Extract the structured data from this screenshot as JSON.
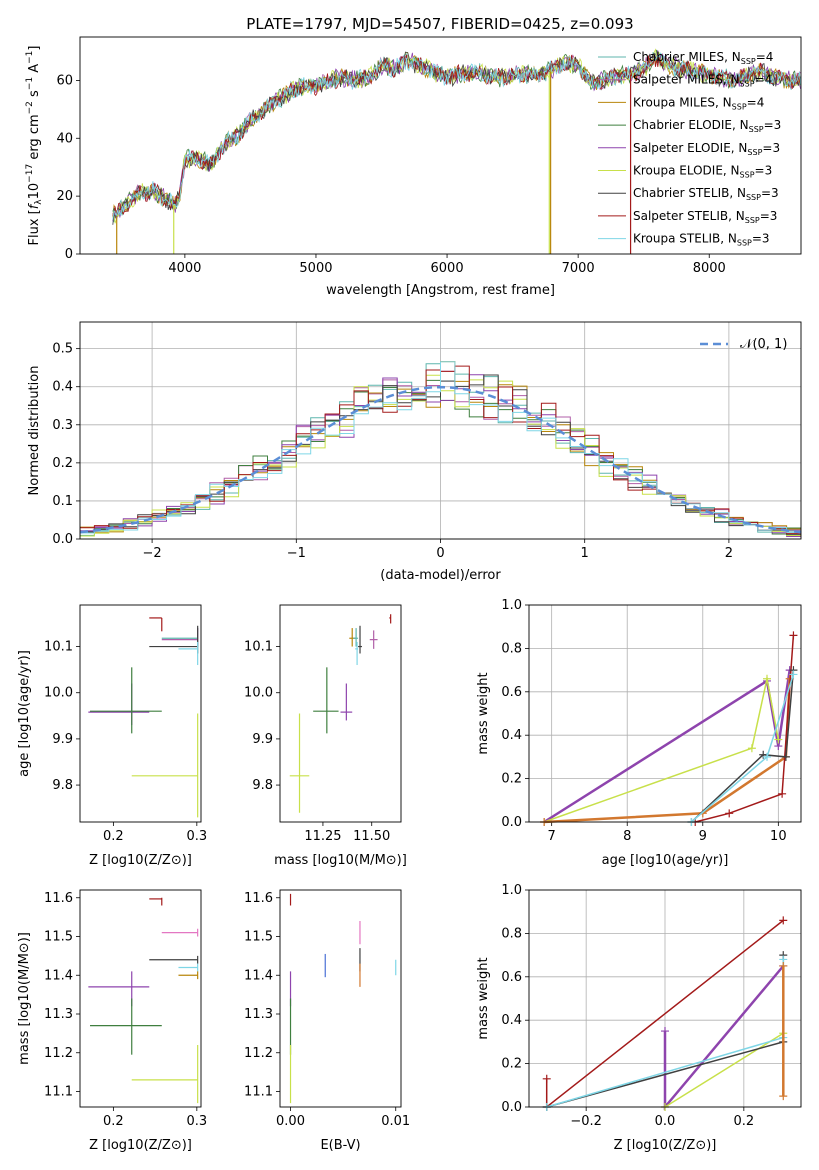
{
  "title": "PLATE=1797, MJD=54507, FIBERID=0425, z=0.093",
  "colors": {
    "axis": "#000000",
    "grid": "#b0b0b0",
    "normal_curve": "#5b8ed6",
    "spectra": [
      "#5fb6ad",
      "#b05fa8",
      "#b8860b",
      "#3f7f3f",
      "#8e44ad",
      "#c8e04a",
      "#404040",
      "#a31a1a",
      "#7fd6e6"
    ],
    "extra_orange": "#d2782f",
    "extra_pink": "#e377c2",
    "extra_blue": "#4a6fd6"
  },
  "legend_series": [
    {
      "main": "Chabrier MILES, N",
      "sub": "SSP",
      "suffix": "=4"
    },
    {
      "main": "Salpeter MILES, N",
      "sub": "SSP",
      "suffix": "=4"
    },
    {
      "main": "Kroupa MILES, N",
      "sub": "SSP",
      "suffix": "=4"
    },
    {
      "main": "Chabrier ELODIE, N",
      "sub": "SSP",
      "suffix": "=3"
    },
    {
      "main": "Salpeter ELODIE, N",
      "sub": "SSP",
      "suffix": "=3"
    },
    {
      "main": "Kroupa ELODIE, N",
      "sub": "SSP",
      "suffix": "=3"
    },
    {
      "main": "Chabrier STELIB, N",
      "sub": "SSP",
      "suffix": "=3"
    },
    {
      "main": "Salpeter STELIB, N",
      "sub": "SSP",
      "suffix": "=3"
    },
    {
      "main": "Kroupa STELIB, N",
      "sub": "SSP",
      "suffix": "=3"
    }
  ],
  "chart_data": [
    {
      "id": "spectrum",
      "type": "line",
      "xlabel": "wavelength [Angstrom, rest frame]",
      "ylabel": "Flux [f_λ10^-17 erg cm^-2 s^-1 A^-1]",
      "xlim": [
        3200,
        8700
      ],
      "ylim": [
        0,
        75
      ],
      "xticks": [
        4000,
        5000,
        6000,
        7000,
        8000
      ],
      "yticks": [
        0,
        20,
        40,
        60
      ],
      "grid": false,
      "legend": "top-right",
      "continuum": [
        [
          3450,
          13
        ],
        [
          3550,
          17
        ],
        [
          3650,
          21
        ],
        [
          3750,
          22
        ],
        [
          3850,
          19
        ],
        [
          3920,
          17
        ],
        [
          3960,
          20
        ],
        [
          4000,
          33
        ],
        [
          4100,
          33
        ],
        [
          4200,
          31
        ],
        [
          4300,
          38
        ],
        [
          4400,
          41
        ],
        [
          4500,
          46
        ],
        [
          4600,
          50
        ],
        [
          4700,
          53
        ],
        [
          4800,
          56
        ],
        [
          4900,
          58
        ],
        [
          5000,
          58
        ],
        [
          5100,
          60
        ],
        [
          5200,
          61
        ],
        [
          5300,
          60
        ],
        [
          5400,
          61
        ],
        [
          5500,
          65
        ],
        [
          5600,
          64
        ],
        [
          5700,
          67
        ],
        [
          5800,
          65
        ],
        [
          5900,
          63
        ],
        [
          6000,
          61
        ],
        [
          6100,
          62
        ],
        [
          6200,
          63
        ],
        [
          6300,
          62
        ],
        [
          6400,
          61
        ],
        [
          6500,
          62
        ],
        [
          6600,
          62
        ],
        [
          6700,
          62
        ],
        [
          6800,
          64
        ],
        [
          6900,
          66
        ],
        [
          7000,
          65
        ],
        [
          7100,
          59
        ],
        [
          7200,
          60
        ],
        [
          7300,
          62
        ],
        [
          7400,
          62
        ],
        [
          7500,
          64
        ],
        [
          7600,
          68
        ],
        [
          7700,
          65
        ],
        [
          7800,
          64
        ],
        [
          7900,
          63
        ],
        [
          8000,
          62
        ],
        [
          8100,
          61
        ],
        [
          8200,
          60
        ],
        [
          8300,
          62
        ],
        [
          8400,
          63
        ],
        [
          8500,
          61
        ],
        [
          8600,
          60
        ],
        [
          8700,
          60
        ]
      ],
      "dropouts": [
        {
          "series": 2,
          "x": 3480,
          "from": 13,
          "to": 0
        },
        {
          "series": 5,
          "x": 3915,
          "from": 17,
          "to": 0
        },
        {
          "series": 5,
          "x": 6780,
          "from": 63,
          "to": 0
        },
        {
          "series": 2,
          "x": 6790,
          "from": 63,
          "to": 0
        },
        {
          "series": 7,
          "x": 7400,
          "from": 62,
          "to": 0
        }
      ]
    },
    {
      "id": "residual_hist",
      "type": "bar",
      "xlabel": "(data-model)/error",
      "ylabel": "Normed distribution",
      "xlim": [
        -2.5,
        2.5
      ],
      "ylim": [
        0,
        0.57
      ],
      "xticks": [
        -2,
        -1,
        0,
        1,
        2
      ],
      "yticks": [
        0.0,
        0.1,
        0.2,
        0.3,
        0.4,
        0.5
      ],
      "grid": true,
      "legend": "top-right",
      "normal_label": "𝒩(0, 1)",
      "bin_width": 0.1
    },
    {
      "id": "age_vs_Z",
      "type": "scatter",
      "xlabel": "Z [log10(Z/Z⊙)]",
      "ylabel": "age  [log10(age/yr)]",
      "xlim": [
        0.16,
        0.305
      ],
      "ylim": [
        9.72,
        10.19
      ],
      "xticks": [
        0.2,
        0.3
      ],
      "yticks": [
        9.8,
        9.9,
        10.0,
        10.1
      ],
      "grid": false,
      "points": [
        {
          "series": 7,
          "x": 0.258,
          "y": 10.162,
          "xerr": [
            0.258,
            0.243
          ],
          "yerr": [
            10.162,
            10.133
          ]
        },
        {
          "series": 0,
          "x": 0.301,
          "y": 10.118,
          "xerr": [
            0.301,
            0.258
          ],
          "yerr": [
            10.14,
            10.1
          ]
        },
        {
          "series": 1,
          "x": 0.301,
          "y": 10.115,
          "xerr": [
            0.301,
            0.258
          ],
          "yerr": [
            10.14,
            10.1
          ]
        },
        {
          "series": 6,
          "x": 0.301,
          "y": 10.1,
          "xerr": [
            0.301,
            0.243
          ],
          "yerr": [
            10.145,
            10.085
          ]
        },
        {
          "series": 8,
          "x": 0.301,
          "y": 10.095,
          "xerr": [
            0.301,
            0.278
          ],
          "yerr": [
            10.11,
            10.06
          ]
        },
        {
          "series": 4,
          "x": 0.222,
          "y": 9.958,
          "xerr": [
            0.17,
            0.243
          ],
          "yerr": [
            10.02,
            9.93
          ]
        },
        {
          "series": 3,
          "x": 0.222,
          "y": 9.96,
          "xerr": [
            0.172,
            0.258
          ],
          "yerr": [
            10.055,
            9.912
          ]
        },
        {
          "series": 5,
          "x": 0.301,
          "y": 9.82,
          "xerr": [
            0.301,
            0.222
          ],
          "yerr": [
            9.955,
            9.73
          ]
        }
      ]
    },
    {
      "id": "age_vs_mass",
      "type": "scatter",
      "xlabel": "mass [log10(M/M⊙)]",
      "xlim": [
        11.03,
        11.65
      ],
      "ylim": [
        9.72,
        10.19
      ],
      "xticks": [
        11.25,
        11.5
      ],
      "yticks": [
        9.8,
        9.9,
        10.0,
        10.1
      ],
      "grid": false,
      "points": [
        {
          "series": 7,
          "x": 11.597,
          "y": 10.162,
          "xerr": [
            11.597,
            11.59
          ],
          "yerr": [
            10.17,
            10.15
          ]
        },
        {
          "series": 1,
          "x": 11.51,
          "y": 10.115,
          "xerr": [
            11.49,
            11.53
          ],
          "yerr": [
            10.135,
            10.095
          ]
        },
        {
          "series": 2,
          "x": 11.4,
          "y": 10.118,
          "xerr": [
            11.385,
            11.42
          ],
          "yerr": [
            10.14,
            10.1
          ]
        },
        {
          "series": 0,
          "x": 11.42,
          "y": 10.118,
          "xerr": [
            11.405,
            11.43
          ],
          "yerr": [
            10.14,
            10.1
          ]
        },
        {
          "series": 6,
          "x": 11.44,
          "y": 10.1,
          "xerr": [
            11.43,
            11.45
          ],
          "yerr": [
            10.145,
            10.085
          ]
        },
        {
          "series": 8,
          "x": 11.425,
          "y": 10.095,
          "xerr": [
            11.415,
            11.43
          ],
          "yerr": [
            10.11,
            10.06
          ]
        },
        {
          "series": 4,
          "x": 11.37,
          "y": 9.958,
          "xerr": [
            11.34,
            11.4
          ],
          "yerr": [
            10.02,
            9.94
          ]
        },
        {
          "series": 3,
          "x": 11.27,
          "y": 9.96,
          "xerr": [
            11.2,
            11.33
          ],
          "yerr": [
            10.055,
            9.912
          ]
        },
        {
          "series": 5,
          "x": 11.13,
          "y": 9.82,
          "xerr": [
            11.08,
            11.18
          ],
          "yerr": [
            9.955,
            9.74
          ]
        }
      ]
    },
    {
      "id": "mass_weight_vs_age",
      "type": "line",
      "xlabel": "age  [log10(age/yr)]",
      "ylabel": "mass weight",
      "xlim": [
        6.7,
        10.3
      ],
      "ylim": [
        0,
        1
      ],
      "xticks": [
        7,
        8,
        9,
        10
      ],
      "yticks": [
        0.0,
        0.2,
        0.4,
        0.6,
        0.8,
        1.0
      ],
      "grid": true,
      "lines": [
        {
          "series": 4,
          "width": 2.5,
          "points": [
            [
              6.9,
              0.0
            ],
            [
              9.85,
              0.65
            ],
            [
              10.0,
              0.35
            ],
            [
              10.15,
              0.7
            ]
          ]
        },
        {
          "series": 5,
          "width": 1.5,
          "points": [
            [
              6.9,
              0.0
            ],
            [
              9.65,
              0.34
            ],
            [
              9.85,
              0.66
            ],
            [
              10.0,
              0.38
            ]
          ]
        },
        {
          "series": "orange",
          "width": 2.5,
          "points": [
            [
              6.9,
              0.0
            ],
            [
              9.0,
              0.04
            ],
            [
              10.1,
              0.3
            ],
            [
              10.15,
              0.66
            ]
          ]
        },
        {
          "series": 7,
          "width": 1.5,
          "points": [
            [
              8.9,
              0.0
            ],
            [
              9.35,
              0.04
            ],
            [
              10.05,
              0.13
            ],
            [
              10.2,
              0.86
            ]
          ]
        },
        {
          "series": 6,
          "width": 1.5,
          "points": [
            [
              8.85,
              0.0
            ],
            [
              9.8,
              0.31
            ],
            [
              10.1,
              0.3
            ],
            [
              10.2,
              0.7
            ]
          ]
        },
        {
          "series": 8,
          "width": 1.5,
          "points": [
            [
              8.85,
              0.0
            ],
            [
              9.85,
              0.3
            ],
            [
              10.2,
              0.68
            ]
          ]
        }
      ]
    },
    {
      "id": "mass_vs_Z",
      "type": "scatter",
      "xlabel": "Z [log10(Z/Z⊙)]",
      "ylabel": "mass [log10(M/M⊙)]",
      "xlim": [
        0.16,
        0.305
      ],
      "ylim": [
        11.06,
        11.62
      ],
      "xticks": [
        0.2,
        0.3
      ],
      "yticks": [
        11.1,
        11.2,
        11.3,
        11.4,
        11.5,
        11.6
      ],
      "grid": false,
      "points": [
        {
          "series": 7,
          "x": 0.258,
          "y": 11.597,
          "xerr": [
            0.258,
            0.243
          ],
          "yerr": [
            11.6,
            11.58
          ]
        },
        {
          "series": "pink",
          "x": 0.301,
          "y": 11.51,
          "xerr": [
            0.301,
            0.258
          ],
          "yerr": [
            11.52,
            11.5
          ]
        },
        {
          "series": 6,
          "x": 0.301,
          "y": 11.44,
          "xerr": [
            0.301,
            0.243
          ],
          "yerr": [
            11.45,
            11.43
          ]
        },
        {
          "series": 8,
          "x": 0.301,
          "y": 11.42,
          "xerr": [
            0.301,
            0.278
          ],
          "yerr": [
            11.43,
            11.41
          ]
        },
        {
          "series": 2,
          "x": 0.301,
          "y": 11.4,
          "xerr": [
            0.301,
            0.278
          ],
          "yerr": [
            11.41,
            11.39
          ]
        },
        {
          "series": 4,
          "x": 0.222,
          "y": 11.37,
          "xerr": [
            0.17,
            0.243
          ],
          "yerr": [
            11.41,
            11.32
          ]
        },
        {
          "series": 3,
          "x": 0.222,
          "y": 11.27,
          "xerr": [
            0.172,
            0.258
          ],
          "yerr": [
            11.34,
            11.195
          ]
        },
        {
          "series": 5,
          "x": 0.301,
          "y": 11.13,
          "xerr": [
            0.301,
            0.222
          ],
          "yerr": [
            11.22,
            11.07
          ]
        }
      ]
    },
    {
      "id": "mass_vs_ebv",
      "type": "scatter",
      "xlabel": "E(B-V)",
      "xlim": [
        -0.001,
        0.0105
      ],
      "ylim": [
        11.06,
        11.62
      ],
      "xticks": [
        0.0,
        0.01
      ],
      "yticks": [
        11.1,
        11.2,
        11.3,
        11.4,
        11.5,
        11.6
      ],
      "grid": false,
      "points": [
        {
          "series": 7,
          "x": 0.0,
          "y": 11.597,
          "yerr": [
            11.61,
            11.58
          ]
        },
        {
          "series": "pink",
          "x": 0.0066,
          "y": 11.51,
          "yerr": [
            11.54,
            11.48
          ]
        },
        {
          "series": 6,
          "x": 0.0066,
          "y": 11.44,
          "yerr": [
            11.47,
            11.41
          ]
        },
        {
          "series": "orange",
          "x": 0.0066,
          "y": 11.4,
          "yerr": [
            11.43,
            11.37
          ]
        },
        {
          "series": "blue",
          "x": 0.0033,
          "y": 11.425,
          "yerr": [
            11.455,
            11.395
          ]
        },
        {
          "series": 8,
          "x": 0.01,
          "y": 11.42,
          "yerr": [
            11.44,
            11.4
          ]
        },
        {
          "series": 4,
          "x": 0.0,
          "y": 11.37,
          "yerr": [
            11.41,
            11.32
          ]
        },
        {
          "series": 3,
          "x": 0.0,
          "y": 11.27,
          "yerr": [
            11.34,
            11.195
          ]
        },
        {
          "series": 5,
          "x": 0.0,
          "y": 11.13,
          "yerr": [
            11.22,
            11.07
          ]
        }
      ]
    },
    {
      "id": "mass_weight_vs_Z",
      "type": "line",
      "xlabel": "Z [log10(Z/Z⊙)]",
      "ylabel": "mass weight",
      "xlim": [
        -0.345,
        0.345
      ],
      "ylim": [
        0,
        1
      ],
      "xticks": [
        -0.2,
        0.0,
        0.2
      ],
      "yticks": [
        0.0,
        0.2,
        0.4,
        0.6,
        0.8,
        1.0
      ],
      "grid": true,
      "lines": [
        {
          "series": 7,
          "width": 1.5,
          "points": [
            [
              -0.3,
              0.13
            ],
            [
              -0.3,
              0.0
            ],
            [
              0.3,
              0.86
            ]
          ]
        },
        {
          "series": 4,
          "width": 2.5,
          "points": [
            [
              0.0,
              0.35
            ],
            [
              0.0,
              0.0
            ],
            [
              0.3,
              0.65
            ]
          ]
        },
        {
          "series": 5,
          "width": 1.5,
          "points": [
            [
              0.0,
              0.0
            ],
            [
              0.3,
              0.34
            ]
          ]
        },
        {
          "series": 6,
          "width": 1.5,
          "points": [
            [
              -0.3,
              0.0
            ],
            [
              0.3,
              0.3
            ],
            [
              0.3,
              0.7
            ]
          ]
        },
        {
          "series": 8,
          "width": 1.5,
          "points": [
            [
              -0.3,
              0.0
            ],
            [
              0.3,
              0.32
            ],
            [
              0.3,
              0.68
            ]
          ]
        },
        {
          "series": "orange",
          "width": 2.5,
          "points": [
            [
              0.3,
              0.05
            ],
            [
              0.3,
              0.65
            ]
          ]
        }
      ]
    }
  ]
}
